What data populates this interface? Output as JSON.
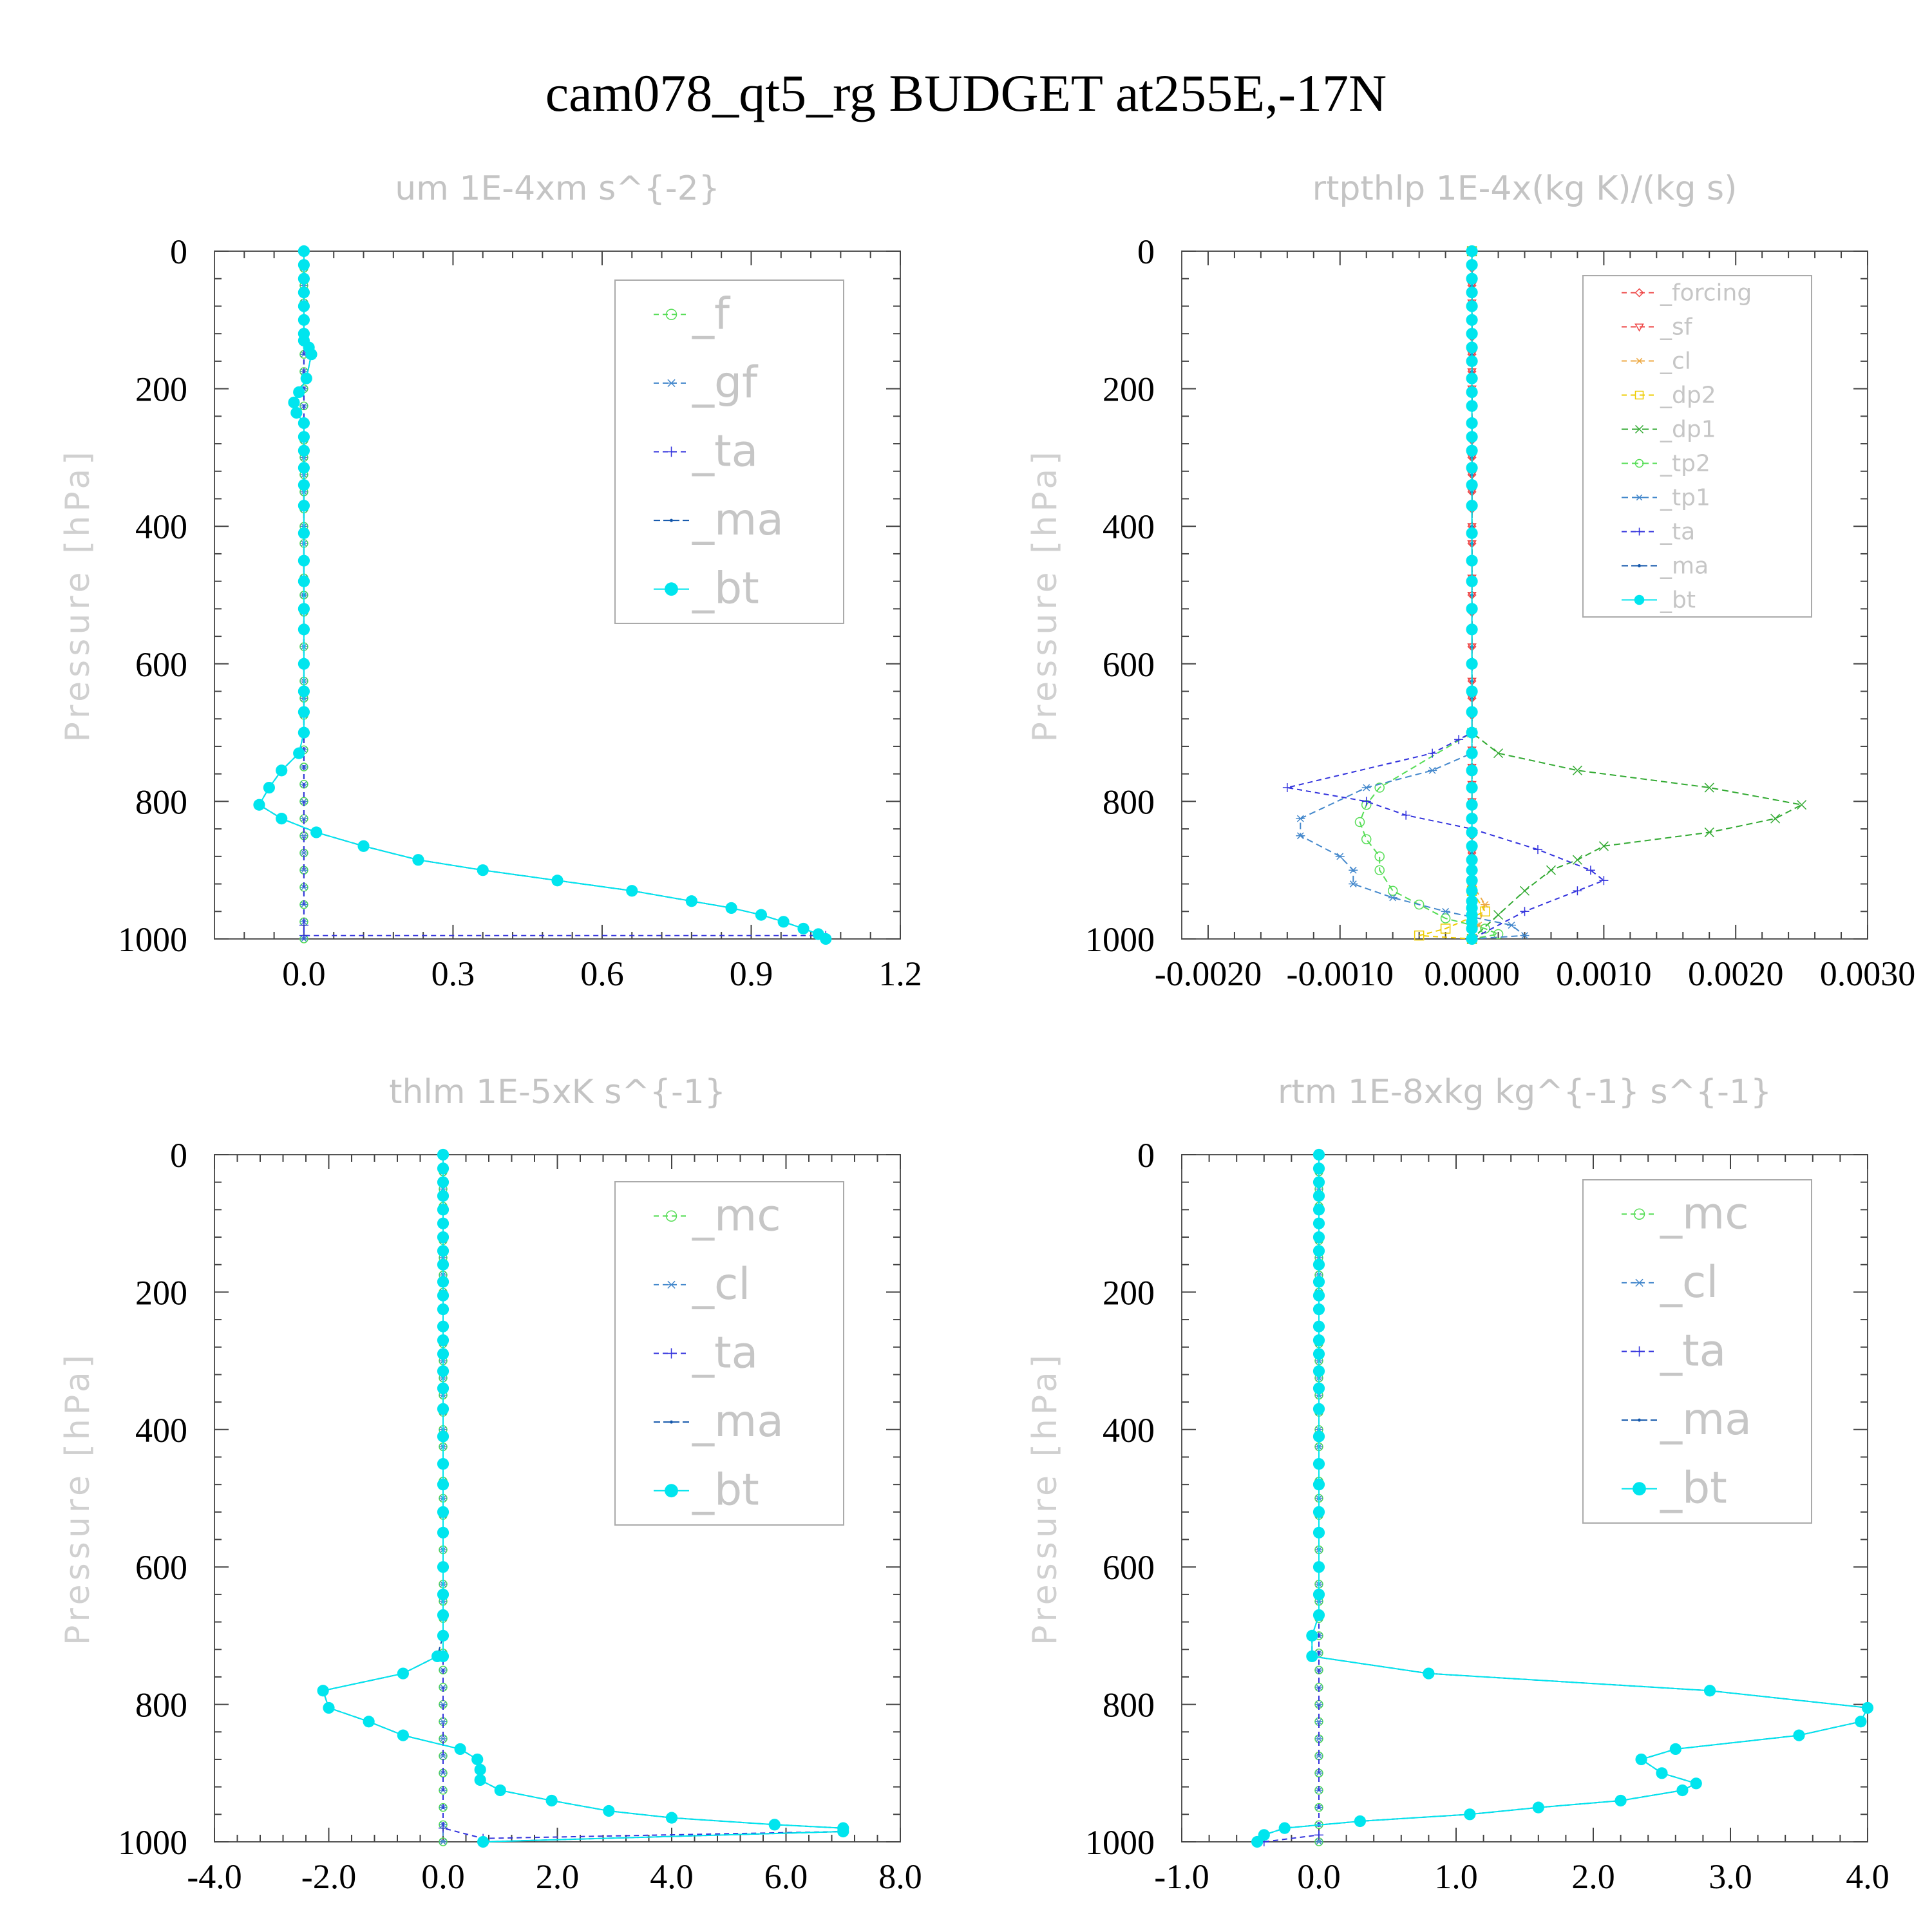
{
  "title": "cam078_qt5_rg  BUDGET at255E,-17N",
  "colors": {
    "_f": "#55dd55",
    "_gf": "#4488cc",
    "_ta": "#3333dd",
    "_ma": "#1155aa",
    "_bt": "#00e5ee",
    "_mc": "#55dd55",
    "_cl": "#4488cc",
    "_forcing": "#ee4444",
    "_sf": "#ee4444",
    "_dp2": "#eecc00",
    "_dp1": "#33aa33",
    "_tp2": "#55dd55",
    "_tp1": "#4488cc",
    "_cl_rtpthlp": "#eeaa44"
  },
  "chart_data": [
    {
      "type": "line",
      "title": "um  1E-4xm s^{-2}",
      "ylabel": "Pressure [hPa]",
      "xlim": [
        -0.18,
        1.2
      ],
      "ylim": [
        1000,
        0
      ],
      "xticks": [
        "0.0",
        "0.3",
        "0.6",
        "0.9",
        "1.2"
      ],
      "yticks": [
        "0",
        "200",
        "400",
        "600",
        "800",
        "1000"
      ],
      "legend": [
        "_f",
        "_gf",
        "_ta",
        "_ma",
        "_bt"
      ],
      "series": [
        {
          "name": "_f",
          "x": [
            0,
            0
          ],
          "y": [
            0,
            1000
          ]
        },
        {
          "name": "_gf",
          "x": [
            0,
            0
          ],
          "y": [
            0,
            1000
          ]
        },
        {
          "name": "_ta",
          "x": [
            0,
            0,
            0,
            1.05
          ],
          "y": [
            0,
            980,
            995,
            995
          ]
        },
        {
          "name": "_ma",
          "x": [
            0,
            0,
            0.01,
            0.015,
            0.005,
            -0.01,
            -0.02,
            -0.015,
            0,
            0,
            0,
            0,
            0,
            0,
            0,
            0,
            0,
            0,
            0,
            0,
            -0.01,
            -0.045,
            -0.07,
            -0.09,
            -0.045,
            0.025,
            0.12,
            0.23,
            0.36,
            0.51,
            0.66,
            0.78,
            0.86,
            0.92,
            0.965,
            1.005,
            1.035,
            1.05
          ],
          "y": [
            0,
            120,
            140,
            150,
            185,
            205,
            220,
            235,
            250,
            270,
            290,
            315,
            340,
            370,
            410,
            450,
            500,
            550,
            600,
            700,
            730,
            755,
            780,
            805,
            825,
            845,
            865,
            885,
            900,
            915,
            930,
            945,
            955,
            965,
            975,
            985,
            993,
            1000
          ]
        },
        {
          "name": "_bt",
          "x": [
            0,
            0,
            0,
            0,
            0,
            0,
            0,
            0,
            0.01,
            0.015,
            0.005,
            -0.01,
            -0.02,
            -0.015,
            0,
            0,
            0,
            0,
            0,
            0,
            0,
            0,
            0,
            0,
            0,
            0,
            0,
            0,
            0,
            -0.01,
            -0.045,
            -0.07,
            -0.09,
            -0.045,
            0.025,
            0.12,
            0.23,
            0.36,
            0.51,
            0.66,
            0.78,
            0.86,
            0.92,
            0.965,
            1.005,
            1.035,
            1.05
          ],
          "y": [
            0,
            20,
            40,
            60,
            80,
            100,
            120,
            130,
            140,
            150,
            185,
            205,
            220,
            235,
            250,
            270,
            290,
            315,
            340,
            370,
            410,
            450,
            480,
            520,
            550,
            600,
            640,
            670,
            700,
            730,
            755,
            780,
            805,
            825,
            845,
            865,
            885,
            900,
            915,
            930,
            945,
            955,
            965,
            975,
            985,
            993,
            1000
          ]
        }
      ]
    },
    {
      "type": "line",
      "title": "rtpthlp  1E-4x(kg K)/(kg s)",
      "ylabel": "Pressure [hPa]",
      "xlim": [
        -0.0022,
        0.003
      ],
      "ylim": [
        1000,
        0
      ],
      "xticks": [
        "-0.0020",
        "-0.0010",
        "0.0000",
        "0.0010",
        "0.0020",
        "0.0030"
      ],
      "yticks": [
        "0",
        "200",
        "400",
        "600",
        "800",
        "1000"
      ],
      "legend": [
        "_forcing",
        "_sf",
        "_cl",
        "_dp2",
        "_dp1",
        "_tp2",
        "_tp1",
        "_ta",
        "_ma",
        "_bt"
      ],
      "series": [
        {
          "name": "_forcing",
          "x": [
            0,
            0
          ],
          "y": [
            0,
            1000
          ]
        },
        {
          "name": "_sf",
          "x": [
            0,
            0
          ],
          "y": [
            0,
            1000
          ]
        },
        {
          "name": "_cl",
          "x": [
            0,
            0,
            0.0001,
            5e-05,
            0
          ],
          "y": [
            0,
            920,
            950,
            980,
            1000
          ]
        },
        {
          "name": "_dp2",
          "x": [
            0,
            0,
            0.0001,
            -0.0002,
            -0.0004,
            0
          ],
          "y": [
            0,
            930,
            960,
            985,
            995,
            1000
          ]
        },
        {
          "name": "_dp1",
          "x": [
            0,
            0,
            0.0002,
            0.0008,
            0.0018,
            0.0025,
            0.0023,
            0.0018,
            0.001,
            0.0008,
            0.0006,
            0.0004,
            0.0002,
            0
          ],
          "y": [
            0,
            700,
            730,
            755,
            780,
            805,
            825,
            845,
            865,
            885,
            900,
            930,
            965,
            1000
          ]
        },
        {
          "name": "_tp2",
          "x": [
            0,
            0,
            -0.0007,
            -0.0008,
            -0.00085,
            -0.0008,
            -0.0007,
            -0.0007,
            -0.0006,
            -0.0004,
            -0.0002,
            0.0001,
            0.0002,
            0
          ],
          "y": [
            0,
            700,
            780,
            805,
            830,
            855,
            880,
            900,
            930,
            950,
            970,
            985,
            993,
            1000
          ]
        },
        {
          "name": "_tp1",
          "x": [
            0,
            0,
            -0.0003,
            -0.0008,
            -0.0013,
            -0.0013,
            -0.001,
            -0.0009,
            -0.0009,
            -0.0006,
            -0.0002,
            0.0003,
            0.0004,
            0
          ],
          "y": [
            0,
            730,
            755,
            780,
            825,
            850,
            880,
            900,
            920,
            940,
            960,
            980,
            995,
            1000
          ]
        },
        {
          "name": "_ta",
          "x": [
            0,
            0,
            -0.0001,
            -0.0003,
            -0.0014,
            -0.0008,
            -0.0005,
            0,
            0.0005,
            0.0009,
            0.001,
            0.0008,
            0.0004,
            0
          ],
          "y": [
            0,
            700,
            710,
            730,
            780,
            800,
            820,
            840,
            870,
            900,
            915,
            930,
            960,
            1000
          ]
        },
        {
          "name": "_ma",
          "x": [
            0,
            0
          ],
          "y": [
            0,
            1000
          ]
        },
        {
          "name": "_bt",
          "x": [
            0,
            0,
            0,
            0,
            0,
            0,
            0,
            0,
            0,
            0,
            0,
            0,
            0,
            0,
            0,
            0,
            0,
            0,
            0,
            0,
            0,
            0,
            0,
            0,
            0,
            0,
            0,
            0,
            0,
            0,
            0,
            0,
            0,
            0,
            0,
            0,
            0,
            0,
            0,
            0,
            0,
            0,
            0,
            0
          ],
          "y": [
            0,
            20,
            40,
            60,
            80,
            100,
            120,
            140,
            160,
            185,
            205,
            225,
            250,
            270,
            290,
            315,
            340,
            370,
            410,
            450,
            480,
            520,
            550,
            600,
            640,
            670,
            700,
            730,
            755,
            780,
            805,
            825,
            845,
            865,
            885,
            900,
            915,
            930,
            945,
            955,
            965,
            975,
            985,
            1000
          ]
        }
      ]
    },
    {
      "type": "line",
      "title": "thlm  1E-5xK s^{-1}",
      "ylabel": "Pressure [hPa]",
      "xlim": [
        -4.0,
        8.0
      ],
      "ylim": [
        1000,
        0
      ],
      "xticks": [
        "-4.0",
        "-2.0",
        "0.0",
        "2.0",
        "4.0",
        "6.0",
        "8.0"
      ],
      "yticks": [
        "0",
        "200",
        "400",
        "600",
        "800",
        "1000"
      ],
      "legend": [
        "_mc",
        "_cl",
        "_ta",
        "_ma",
        "_bt"
      ],
      "series": [
        {
          "name": "_mc",
          "x": [
            0,
            0
          ],
          "y": [
            0,
            1000
          ]
        },
        {
          "name": "_cl",
          "x": [
            0,
            0
          ],
          "y": [
            0,
            1000
          ]
        },
        {
          "name": "_ta",
          "x": [
            0,
            0,
            0.7,
            7.0
          ],
          "y": [
            0,
            980,
            995,
            985
          ]
        },
        {
          "name": "_ma",
          "x": [
            0,
            0,
            -0.1,
            -0.7,
            -2.1,
            -2.0,
            -1.3,
            -0.7,
            0.3,
            0.6,
            0.65,
            0.65,
            1.0,
            1.9,
            2.9,
            4.0,
            5.8,
            7.0,
            7.0,
            0.7
          ],
          "y": [
            0,
            700,
            730,
            755,
            780,
            805,
            825,
            845,
            865,
            880,
            895,
            910,
            925,
            940,
            955,
            965,
            975,
            980,
            985,
            1000
          ]
        },
        {
          "name": "_bt",
          "x": [
            0,
            0,
            0,
            0,
            0,
            0,
            0,
            0,
            0,
            0,
            0,
            0,
            0,
            0,
            0,
            0,
            0,
            0,
            0,
            0,
            0,
            0,
            0,
            0,
            0,
            0,
            0,
            0,
            -0.1,
            -0.7,
            -2.1,
            -2.0,
            -1.3,
            -0.7,
            0.3,
            0.6,
            0.65,
            0.65,
            1.0,
            1.9,
            2.9,
            4.0,
            5.8,
            7.0,
            7.0,
            0.7
          ],
          "y": [
            0,
            20,
            40,
            60,
            80,
            100,
            120,
            140,
            160,
            185,
            205,
            225,
            250,
            270,
            290,
            315,
            340,
            370,
            410,
            450,
            480,
            520,
            550,
            600,
            640,
            670,
            700,
            730,
            730,
            755,
            780,
            805,
            825,
            845,
            865,
            880,
            895,
            910,
            925,
            940,
            955,
            965,
            975,
            980,
            985,
            1000
          ]
        }
      ]
    },
    {
      "type": "line",
      "title": "rtm  1E-8xkg kg^{-1} s^{-1}",
      "ylabel": "Pressure [hPa]",
      "xlim": [
        -1.0,
        4.0
      ],
      "ylim": [
        1000,
        0
      ],
      "xticks": [
        "-1.0",
        "0.0",
        "1.0",
        "2.0",
        "3.0",
        "4.0"
      ],
      "yticks": [
        "0",
        "200",
        "400",
        "600",
        "800",
        "1000"
      ],
      "legend": [
        "_mc",
        "_cl",
        "_ta",
        "_ma",
        "_bt"
      ],
      "series": [
        {
          "name": "_mc",
          "x": [
            0,
            0
          ],
          "y": [
            0,
            1000
          ]
        },
        {
          "name": "_cl",
          "x": [
            0,
            0
          ],
          "y": [
            0,
            1000
          ]
        },
        {
          "name": "_ta",
          "x": [
            0,
            0,
            -0.4
          ],
          "y": [
            0,
            990,
            1000
          ]
        },
        {
          "name": "_ma",
          "x": [
            0,
            0,
            -0.05,
            -0.05,
            0.8,
            2.85,
            4.0,
            3.95,
            3.5,
            2.6,
            2.35,
            2.5,
            2.75,
            2.65,
            2.2,
            1.6,
            1.1,
            0.3,
            -0.25,
            -0.4,
            -0.45
          ],
          "y": [
            0,
            670,
            700,
            730,
            755,
            780,
            805,
            825,
            845,
            865,
            880,
            900,
            915,
            925,
            940,
            950,
            960,
            970,
            980,
            990,
            1000
          ]
        },
        {
          "name": "_bt",
          "x": [
            0,
            0,
            0,
            0,
            0,
            0,
            0,
            0,
            0,
            0,
            0,
            0,
            0,
            0,
            0,
            0,
            0,
            0,
            0,
            0,
            0,
            0,
            0,
            0,
            0,
            0,
            -0.05,
            -0.05,
            0.8,
            2.85,
            4.0,
            3.95,
            3.5,
            2.6,
            2.35,
            2.5,
            2.75,
            2.65,
            2.2,
            1.6,
            1.1,
            0.3,
            -0.25,
            -0.4,
            -0.45
          ],
          "y": [
            0,
            20,
            40,
            60,
            80,
            100,
            120,
            140,
            160,
            185,
            205,
            225,
            250,
            270,
            290,
            315,
            340,
            370,
            410,
            450,
            480,
            520,
            550,
            600,
            640,
            670,
            700,
            730,
            755,
            780,
            805,
            825,
            845,
            865,
            880,
            900,
            915,
            925,
            940,
            950,
            960,
            970,
            980,
            990,
            1000
          ]
        }
      ]
    }
  ]
}
